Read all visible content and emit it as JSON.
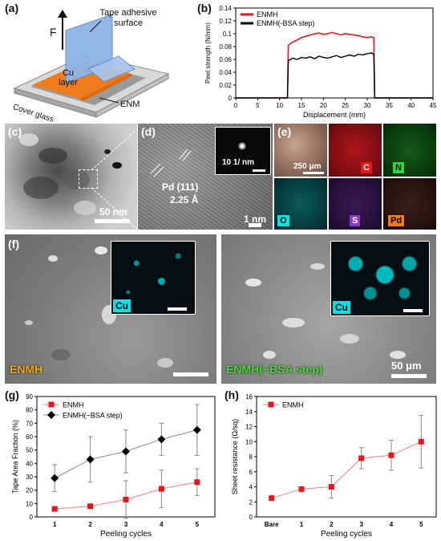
{
  "panels": {
    "a": {
      "label": "(a)",
      "force_label": "F",
      "tape_label": "Tape adhesive surface",
      "cu_label": "Cu layer",
      "enm_label": "ENM",
      "glass_label": "Cover glass"
    },
    "b": {
      "label": "(b)"
    },
    "c": {
      "label": "(c)",
      "scale": "50 nm"
    },
    "d": {
      "label": "(d)",
      "plane": "Pd (111)",
      "spacing": "2.25 Å",
      "scale": "1 nm",
      "inset_scale": "10 1/ nm"
    },
    "e": {
      "label": "(e)",
      "scale": "250 μm",
      "elements": [
        "C",
        "N",
        "O",
        "S",
        "Pd"
      ],
      "colors": {
        "C": "#e8151b",
        "N": "#2bd93a",
        "O": "#00e5e8",
        "S": "#8d39c9",
        "Pd": "#f07c1c"
      }
    },
    "f": {
      "label": "(f)",
      "left_inset": "Cu",
      "right_inset": "Cu",
      "left_name": "ENMH",
      "right_name": "ENMH(−BSA step)",
      "scale": "50 μm"
    },
    "g": {
      "label": "(g)"
    },
    "h": {
      "label": "(h)"
    }
  },
  "chart_data": [
    {
      "id": "b",
      "type": "line",
      "title": "",
      "xlabel": "Displacement (mm)",
      "ylabel": "Peel strength (N/mm)",
      "xlim": [
        0,
        45
      ],
      "ylim": [
        0,
        0.14
      ],
      "xticks": [
        0,
        5,
        10,
        15,
        20,
        25,
        30,
        35,
        40,
        45
      ],
      "yticks": [
        0,
        0.02,
        0.04,
        0.06,
        0.08,
        0.1,
        0.12,
        0.14
      ],
      "ytick_labels": [
        "0",
        "0.02",
        "0.04",
        "0.06",
        "0.08",
        "0.1",
        "0.12",
        "0.14"
      ],
      "legend_position": "top-left",
      "series": [
        {
          "name": "ENMH",
          "color": "#e8151b",
          "x": [
            0,
            11.8,
            12.0,
            13,
            14,
            15,
            16,
            17,
            18,
            19,
            20,
            21,
            22,
            23,
            24,
            25,
            26,
            27,
            28,
            29,
            30,
            31,
            31.5,
            31.7,
            45
          ],
          "y": [
            0,
            0,
            0.082,
            0.087,
            0.09,
            0.094,
            0.096,
            0.098,
            0.1,
            0.101,
            0.099,
            0.1,
            0.102,
            0.1,
            0.098,
            0.1,
            0.099,
            0.098,
            0.097,
            0.095,
            0.094,
            0.095,
            0.094,
            0,
            0
          ]
        },
        {
          "name": "ENMH(-BSA step)",
          "color": "#000000",
          "x": [
            0,
            11.8,
            12.0,
            13,
            14,
            15,
            16,
            17,
            18,
            19,
            20,
            21,
            22,
            23,
            24,
            25,
            26,
            27,
            28,
            29,
            30,
            31,
            31.5,
            31.7,
            45
          ],
          "y": [
            0,
            0,
            0.058,
            0.062,
            0.06,
            0.063,
            0.062,
            0.064,
            0.061,
            0.065,
            0.063,
            0.062,
            0.064,
            0.066,
            0.063,
            0.065,
            0.067,
            0.065,
            0.068,
            0.067,
            0.069,
            0.07,
            0.068,
            0,
            0
          ]
        }
      ]
    },
    {
      "id": "g",
      "type": "line",
      "title": "",
      "xlabel": "Peeling cycles",
      "ylabel": "Tape Area Fraction (%)",
      "categories": [
        "1",
        "2",
        "3",
        "4",
        "5"
      ],
      "ylim": [
        0,
        90
      ],
      "yticks": [
        0,
        10,
        20,
        30,
        40,
        50,
        60,
        70,
        80,
        90
      ],
      "legend_position": "top-left",
      "series": [
        {
          "name": "ENMH",
          "color": "#e8151b",
          "marker": "square",
          "values": [
            6,
            8,
            13,
            21,
            26
          ],
          "errors": [
            0,
            1.5,
            14,
            14,
            10
          ]
        },
        {
          "name": "ENMH(−BSA step)",
          "color": "#000000",
          "marker": "diamond",
          "values": [
            29,
            43,
            49,
            58,
            65
          ],
          "errors": [
            10,
            17,
            16,
            12,
            19
          ]
        }
      ]
    },
    {
      "id": "h",
      "type": "line",
      "title": "",
      "xlabel": "Peeling cycles",
      "ylabel": "Sheet resistance (Ω/sq)",
      "categories": [
        "Bare",
        "1",
        "2",
        "3",
        "4",
        "5"
      ],
      "ylim": [
        0,
        16
      ],
      "yticks": [
        0,
        2,
        4,
        6,
        8,
        10,
        12,
        14,
        16
      ],
      "legend_position": "top-left",
      "series": [
        {
          "name": "ENMH",
          "color": "#e8151b",
          "marker": "square",
          "values": [
            2.5,
            3.7,
            4.0,
            7.8,
            8.2,
            10.0
          ],
          "errors": [
            0,
            0.2,
            1.5,
            1.4,
            2.0,
            3.5
          ]
        }
      ]
    }
  ]
}
